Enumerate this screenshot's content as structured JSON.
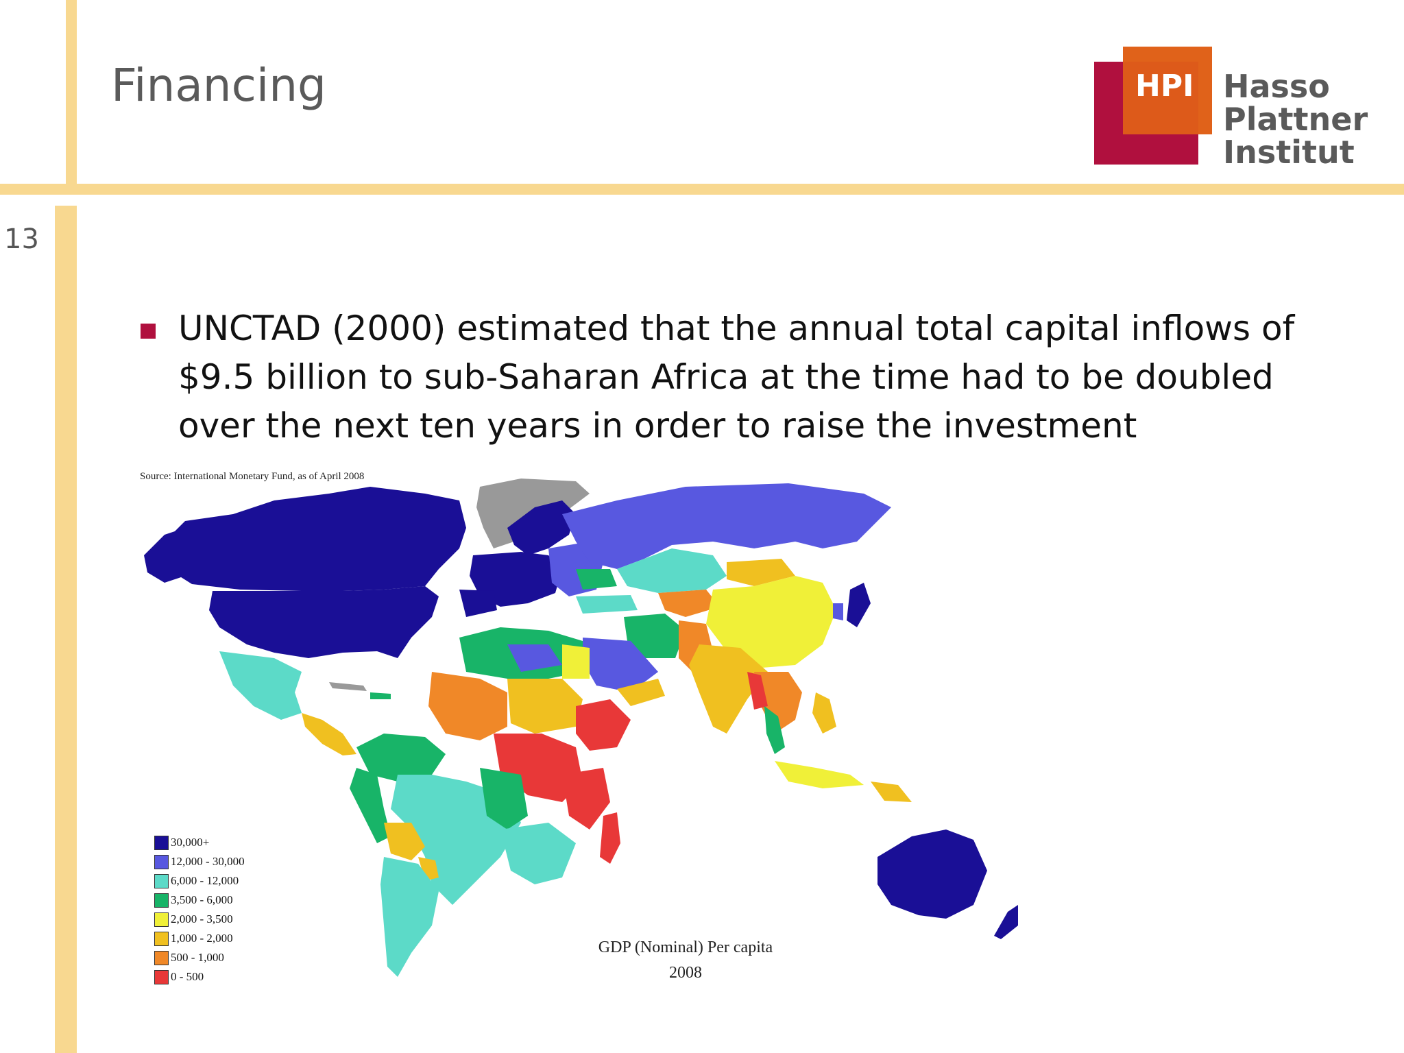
{
  "slide": {
    "title": "Financing",
    "page_number": "13"
  },
  "logo": {
    "mark": "HPI",
    "line1": "Hasso",
    "line2": "Plattner",
    "line3": "Institut"
  },
  "bullet": {
    "lines": [
      "UNCTAD (2000) estimated that the annual total capital inflows of",
      "$9.5 billion to sub-Saharan Africa at the time had to be doubled",
      "over the next ten years in order to raise the investment"
    ]
  },
  "map": {
    "source": "Source: International Monetary Fund, as of April 2008",
    "caption_line1": "GDP (Nominal) Per capita",
    "caption_line2": "2008",
    "legend": [
      {
        "label": "30,000+",
        "color": "#1a0f96"
      },
      {
        "label": "12,000 - 30,000",
        "color": "#5858e0"
      },
      {
        "label": "6,000 - 12,000",
        "color": "#5cdac8"
      },
      {
        "label": "3,500 - 6,000",
        "color": "#18b468"
      },
      {
        "label": "2,000 - 3,500",
        "color": "#f0f038"
      },
      {
        "label": "1,000 - 2,000",
        "color": "#f0c020"
      },
      {
        "label": "500 - 1,000",
        "color": "#f08828"
      },
      {
        "label": "0 - 500",
        "color": "#e83838"
      }
    ],
    "no_data_color": "#999999"
  }
}
